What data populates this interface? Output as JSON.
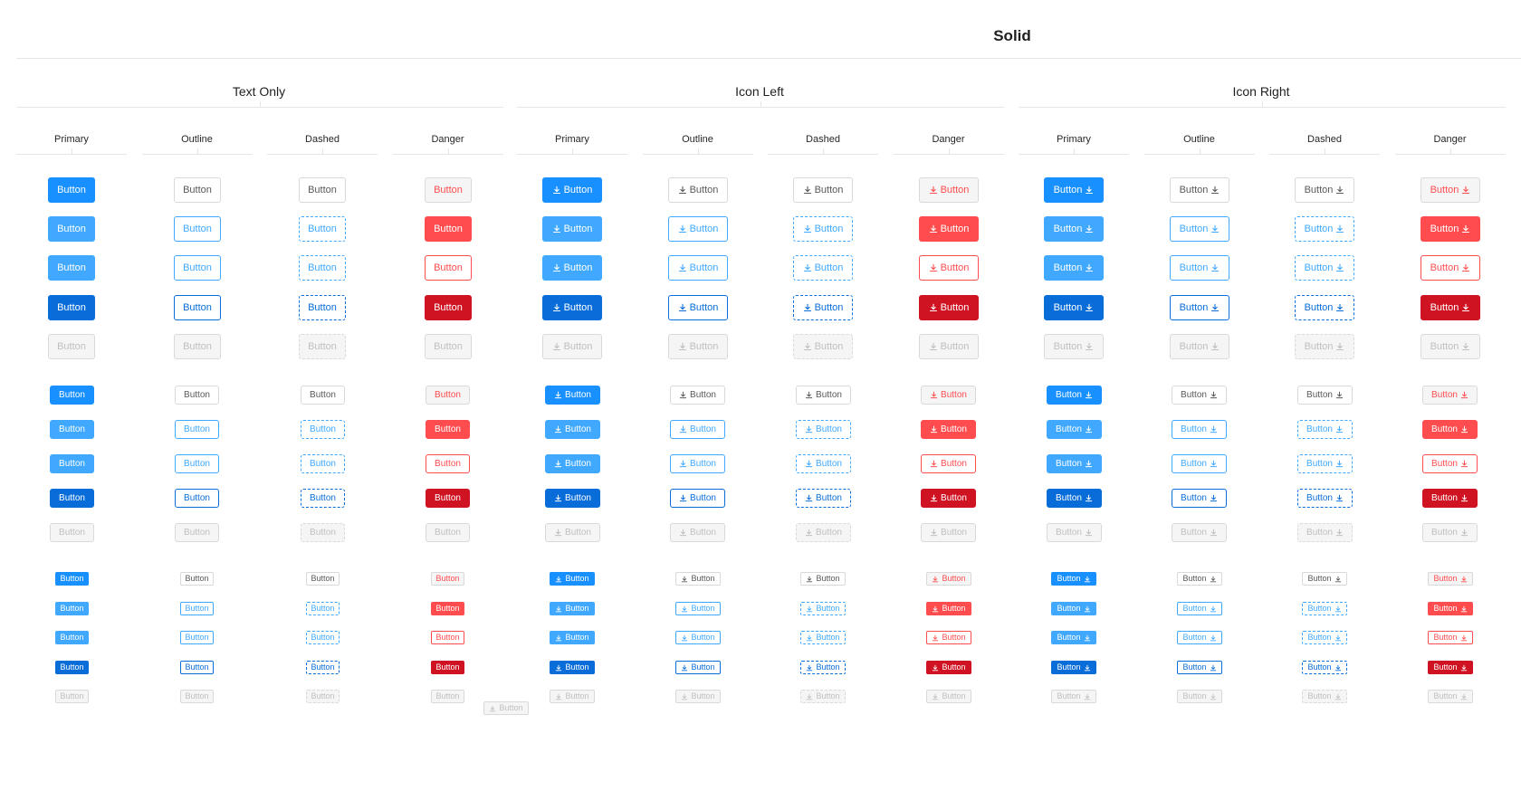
{
  "page": {
    "title": "Solid",
    "groups": [
      {
        "label": "Text Only",
        "icon": "none"
      },
      {
        "label": "Icon Left",
        "icon": "left"
      },
      {
        "label": "Icon Right",
        "icon": "right"
      }
    ],
    "columns": [
      "Primary",
      "Outline",
      "Dashed",
      "Danger"
    ],
    "states": [
      "default",
      "hover",
      "focus",
      "active",
      "disabled"
    ],
    "sizes": [
      "large",
      "medium",
      "small"
    ],
    "button_label": "Button",
    "button_icon": "download-icon",
    "stray_button": {
      "label": "Button",
      "icon": "download-icon",
      "state": "disabled"
    }
  },
  "theme": {
    "primary": "#1890ff",
    "primary_hover": "#40a9ff",
    "primary_active": "#096dd9",
    "danger": "#cf1322",
    "danger_hover": "#ff4d4f",
    "danger_active": "#cf1322",
    "default_border": "#d9d9d9",
    "disabled_bg": "#f5f5f5",
    "disabled_text": "#bfbfbf",
    "text": "#595959"
  }
}
